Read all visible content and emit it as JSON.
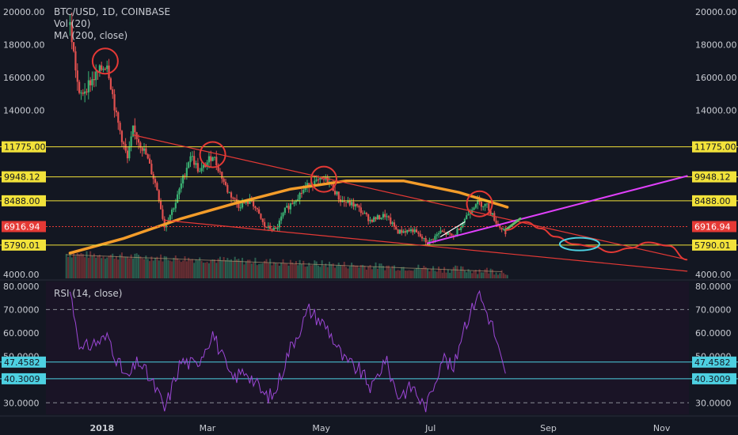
{
  "chart_data": [
    {
      "type": "candlestick",
      "title": "BTC/USD, 1D, COINBASE",
      "indicators": [
        "Vol (20)",
        "MA (200, close)"
      ],
      "price_scale": {
        "min": 4000,
        "max": 20000,
        "ticks": [
          "20000.00",
          "18000.00",
          "16000.00",
          "14000.00",
          "4000.00"
        ]
      },
      "x_axis": {
        "labels": [
          "2018",
          "Mar",
          "May",
          "Jul",
          "Sep",
          "Nov"
        ]
      },
      "x_ticks": [
        {
          "label": "2018",
          "date": "2018-01-01"
        },
        {
          "label": "Mar",
          "date": "2018-03-01"
        },
        {
          "label": "May",
          "date": "2018-05-01"
        },
        {
          "label": "Jul",
          "date": "2018-07-01"
        },
        {
          "label": "Sep",
          "date": "2018-09-01"
        },
        {
          "label": "Nov",
          "date": "2018-11-01"
        }
      ],
      "price_path": [
        [
          "2017-12-17",
          19200
        ],
        [
          "2017-12-22",
          14800
        ],
        [
          "2017-12-27",
          15600
        ],
        [
          "2018-01-06",
          16900
        ],
        [
          "2018-01-11",
          13600
        ],
        [
          "2018-01-17",
          11000
        ],
        [
          "2018-01-20",
          12800
        ],
        [
          "2018-01-27",
          11300
        ],
        [
          "2018-02-02",
          9200
        ],
        [
          "2018-02-06",
          6900
        ],
        [
          "2018-02-12",
          8400
        ],
        [
          "2018-02-20",
          11300
        ],
        [
          "2018-02-25",
          10200
        ],
        [
          "2018-03-04",
          11300
        ],
        [
          "2018-03-12",
          9100
        ],
        [
          "2018-03-18",
          8200
        ],
        [
          "2018-03-25",
          8500
        ],
        [
          "2018-04-01",
          6900
        ],
        [
          "2018-04-07",
          6700
        ],
        [
          "2018-04-12",
          7900
        ],
        [
          "2018-04-20",
          8900
        ],
        [
          "2018-04-25",
          9500
        ],
        [
          "2018-05-05",
          9800
        ],
        [
          "2018-05-12",
          8500
        ],
        [
          "2018-05-20",
          8200
        ],
        [
          "2018-05-28",
          7300
        ],
        [
          "2018-06-05",
          7600
        ],
        [
          "2018-06-12",
          6600
        ],
        [
          "2018-06-20",
          6700
        ],
        [
          "2018-06-28",
          5900
        ],
        [
          "2018-07-05",
          6600
        ],
        [
          "2018-07-12",
          6300
        ],
        [
          "2018-07-18",
          7400
        ],
        [
          "2018-07-24",
          8400
        ],
        [
          "2018-07-30",
          8200
        ],
        [
          "2018-08-05",
          7000
        ],
        [
          "2018-08-09",
          6600
        ]
      ],
      "ma_200": [
        [
          "2017-12-17",
          5300
        ],
        [
          "2018-01-15",
          6200
        ],
        [
          "2018-02-15",
          7400
        ],
        [
          "2018-03-15",
          8300
        ],
        [
          "2018-04-15",
          9200
        ],
        [
          "2018-05-15",
          9700
        ],
        [
          "2018-06-15",
          9700
        ],
        [
          "2018-07-15",
          9000
        ],
        [
          "2018-08-10",
          8100
        ]
      ],
      "horizontal_levels": [
        {
          "value": 11775.0,
          "label": "11775.00",
          "style": "yellow"
        },
        {
          "value": 9948.12,
          "label": "9948.12",
          "style": "yellow"
        },
        {
          "value": 8488.0,
          "label": "8488.00",
          "style": "yellow"
        },
        {
          "value": 6916.94,
          "label": "6916.94",
          "style": "last-price"
        },
        {
          "value": 5790.01,
          "label": "5790.01",
          "style": "yellow"
        }
      ],
      "trendlines": [
        {
          "name": "upper-resistance",
          "color": "#e53935",
          "from": [
            "2018-01-20",
            12500
          ],
          "to": [
            "2018-11-15",
            4900
          ]
        },
        {
          "name": "lower-support",
          "color": "#e53935",
          "from": [
            "2018-02-06",
            7300
          ],
          "to": [
            "2018-11-15",
            4200
          ]
        },
        {
          "name": "rising-support",
          "color": "#e040fb",
          "from": [
            "2018-06-28",
            5900
          ],
          "to": [
            "2018-11-15",
            10000
          ]
        },
        {
          "name": "green-projection",
          "color": "#66bb6a",
          "from": [
            "2018-08-09",
            6700
          ],
          "to": [
            "2018-08-17",
            7400
          ]
        },
        {
          "name": "white-uptrend",
          "color": "#ffffff",
          "from": [
            "2018-07-05",
            6300
          ],
          "to": [
            "2018-07-18",
            7200
          ]
        }
      ],
      "projection_path": [
        [
          "2018-08-09",
          6700
        ],
        [
          "2018-08-20",
          7200
        ],
        [
          "2018-08-28",
          6800
        ],
        [
          "2018-09-05",
          6300
        ],
        [
          "2018-09-15",
          5850
        ],
        [
          "2018-09-25",
          5700
        ],
        [
          "2018-10-05",
          5350
        ],
        [
          "2018-10-15",
          5600
        ],
        [
          "2018-10-25",
          5950
        ],
        [
          "2018-11-05",
          5750
        ],
        [
          "2018-11-15",
          4900
        ]
      ],
      "marked_circles": [
        {
          "color": "#e53935",
          "at": [
            "2018-01-05",
            17000
          ]
        },
        {
          "color": "#e53935",
          "at": [
            "2018-03-04",
            11300
          ]
        },
        {
          "color": "#e53935",
          "at": [
            "2018-05-03",
            9800
          ]
        },
        {
          "color": "#e53935",
          "at": [
            "2018-07-26",
            8300
          ]
        },
        {
          "color": "#4dd0e1",
          "at": [
            "2018-09-18",
            5850
          ]
        }
      ]
    },
    {
      "type": "line",
      "title": "RSI (14, close)",
      "y_scale": {
        "min": 25,
        "max": 82,
        "ticks": [
          "80.0000",
          "70.0000",
          "60.0000",
          "50.0000",
          "30.0000"
        ]
      },
      "dashed_levels": [
        70,
        30
      ],
      "highlighted_levels": [
        {
          "value": 47.4582,
          "label": "47.4582"
        },
        {
          "value": 40.3009,
          "label": "40.3009"
        }
      ],
      "series": [
        {
          "values": [
            [
              "2017-12-17",
              78
            ],
            [
              "2017-12-23",
              52
            ],
            [
              "2017-12-28",
              55
            ],
            [
              "2018-01-07",
              58
            ],
            [
              "2018-01-12",
              47
            ],
            [
              "2018-01-17",
              40
            ],
            [
              "2018-01-23",
              48
            ],
            [
              "2018-02-02",
              35
            ],
            [
              "2018-02-06",
              27
            ],
            [
              "2018-02-15",
              48
            ],
            [
              "2018-02-23",
              46
            ],
            [
              "2018-03-04",
              60
            ],
            [
              "2018-03-14",
              40
            ],
            [
              "2018-03-22",
              44
            ],
            [
              "2018-04-01",
              33
            ],
            [
              "2018-04-06",
              33
            ],
            [
              "2018-04-14",
              52
            ],
            [
              "2018-04-22",
              65
            ],
            [
              "2018-04-25",
              70
            ],
            [
              "2018-05-05",
              62
            ],
            [
              "2018-05-14",
              48
            ],
            [
              "2018-05-22",
              44
            ],
            [
              "2018-05-29",
              36
            ],
            [
              "2018-06-05",
              49
            ],
            [
              "2018-06-12",
              33
            ],
            [
              "2018-06-20",
              37
            ],
            [
              "2018-06-27",
              27
            ],
            [
              "2018-07-06",
              50
            ],
            [
              "2018-07-12",
              44
            ],
            [
              "2018-07-17",
              62
            ],
            [
              "2018-07-22",
              70
            ],
            [
              "2018-07-25",
              78
            ],
            [
              "2018-08-02",
              63
            ],
            [
              "2018-08-07",
              47
            ],
            [
              "2018-08-09",
              41
            ]
          ]
        }
      ]
    }
  ]
}
